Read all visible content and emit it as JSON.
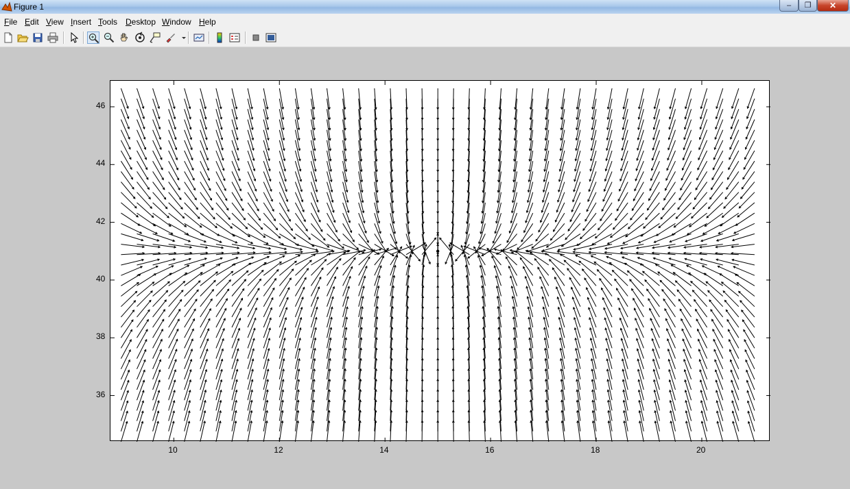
{
  "window": {
    "title": "Figure 1",
    "minimize": "–",
    "maximize": "❐",
    "close": "✕",
    "dock_arrow": "↘"
  },
  "menu": {
    "items": [
      "File",
      "Edit",
      "View",
      "Insert",
      "Tools",
      "Desktop",
      "Window",
      "Help"
    ]
  },
  "toolbar": {
    "buttons": [
      "new-figure-icon",
      "open-file-icon",
      "save-icon",
      "print-icon",
      "select-arrow-icon",
      "zoom-in-icon",
      "zoom-out-icon",
      "pan-hand-icon",
      "rotate-3d-icon",
      "data-cursor-icon",
      "brush-icon",
      "link-plot-icon",
      "colorbar-icon",
      "legend-icon",
      "hide-plot-tools-icon",
      "show-plot-tools-icon"
    ],
    "active": "zoom-in-icon"
  },
  "chart_data": {
    "type": "quiver",
    "xlim": [
      8.8,
      21.3
    ],
    "ylim": [
      34.4,
      46.9
    ],
    "xticks": [
      10,
      12,
      14,
      16,
      18,
      20
    ],
    "yticks": [
      36,
      38,
      40,
      42,
      44,
      46
    ],
    "grid": false,
    "field": {
      "description": "vector field converging to equilibrium point",
      "equilibrium": [
        15,
        41
      ],
      "x_grid": {
        "start": 9.0,
        "end": 21.2,
        "step": 0.3
      },
      "y_grid": {
        "start": 34.4,
        "end": 46.9,
        "step": 0.36
      }
    }
  }
}
